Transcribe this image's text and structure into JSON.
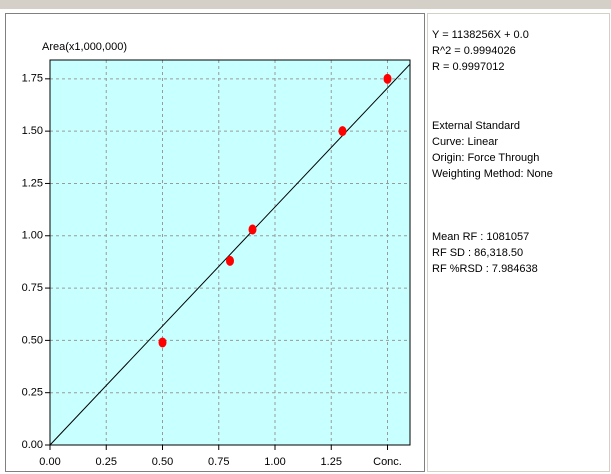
{
  "chart_data": {
    "type": "scatter",
    "y_label": "Area(x1,000,000)",
    "x": [
      0.5,
      0.8,
      0.9,
      1.3,
      1.5
    ],
    "values": [
      0.49,
      0.88,
      1.03,
      1.5,
      1.75
    ],
    "color": "#ff0000",
    "fit": {
      "x": [
        0,
        1.6
      ],
      "values": [
        0,
        1.82
      ],
      "color": "#000000"
    },
    "xlim": [
      0,
      1.6
    ],
    "ylim": [
      0,
      1.84
    ],
    "xticks": [
      {
        "value": 0,
        "label": "0.00"
      },
      {
        "value": 0.25,
        "label": "0.25"
      },
      {
        "value": 0.5,
        "label": "0.50"
      },
      {
        "value": 0.75,
        "label": "0.75"
      },
      {
        "value": 1,
        "label": "1.00"
      },
      {
        "value": 1.25,
        "label": "1.25"
      },
      {
        "value": 1.5,
        "label": "Conc."
      }
    ],
    "yticks": [
      {
        "value": 0,
        "label": "0.00"
      },
      {
        "value": 0.25,
        "label": "0.25"
      },
      {
        "value": 0.5,
        "label": "0.50"
      },
      {
        "value": 0.75,
        "label": "0.75"
      },
      {
        "value": 1,
        "label": "1.00"
      },
      {
        "value": 1.25,
        "label": "1.25"
      },
      {
        "value": 1.5,
        "label": "1.50"
      },
      {
        "value": 1.75,
        "label": "1.75"
      }
    ],
    "grid": true,
    "plot_background": "#c8ffff",
    "annotations": [
      [
        "Y = 1138256X + 0.0",
        "R^2 = 0.9994026",
        "R = 0.9997012"
      ],
      [
        "External Standard",
        "Curve: Linear",
        "Origin: Force Through",
        "Weighting Method: None"
      ],
      [
        "Mean RF :  1081057",
        "RF SD : 86,318.50",
        "RF %RSD : 7.984638"
      ]
    ]
  }
}
